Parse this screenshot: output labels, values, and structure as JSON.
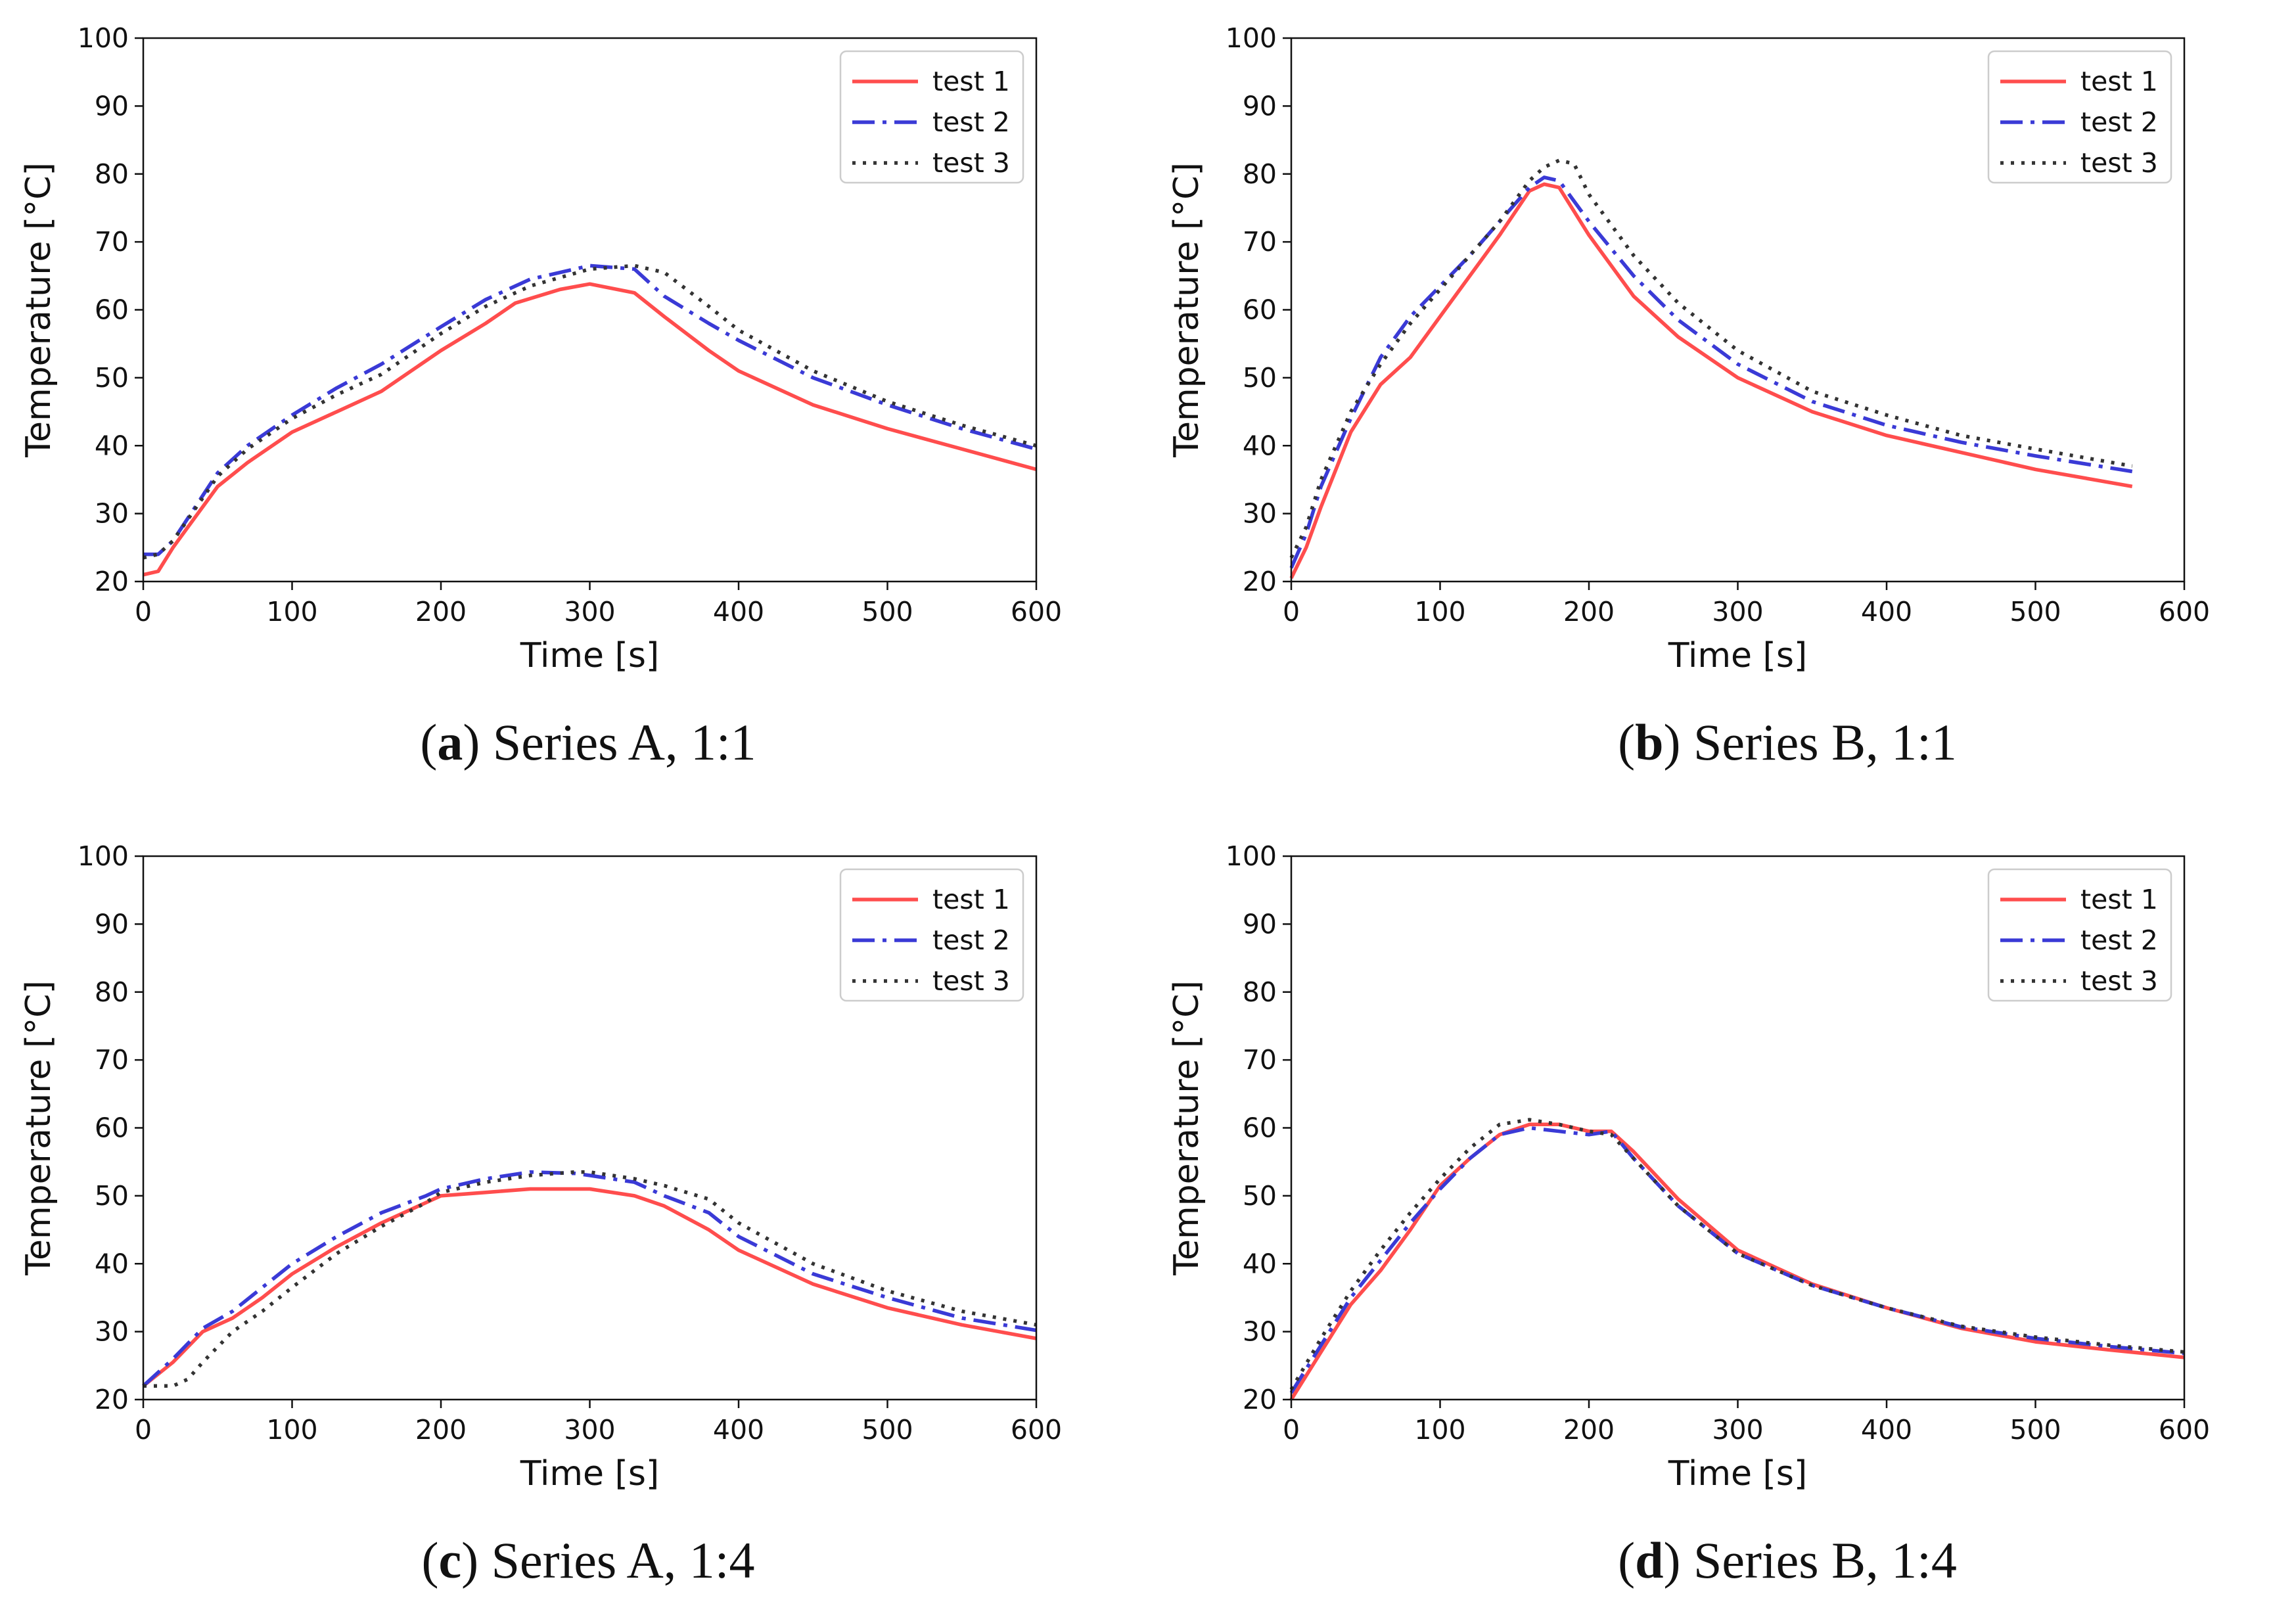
{
  "figure": {
    "panels": [
      {
        "id": "a",
        "letter": "a",
        "caption_text": "Series A, 1:1"
      },
      {
        "id": "b",
        "letter": "b",
        "caption_text": "Series B, 1:1"
      },
      {
        "id": "c",
        "letter": "c",
        "caption_text": "Series A, 1:4"
      },
      {
        "id": "d",
        "letter": "d",
        "caption_text": "Series B, 1:4"
      }
    ]
  },
  "chart_data": [
    {
      "type": "line",
      "title": "(a) Series A, 1:1",
      "xlabel": "Time [s]",
      "ylabel": "Temperature [°C]",
      "xlim": [
        0,
        600
      ],
      "ylim": [
        20,
        100
      ],
      "xticks": [
        0,
        100,
        200,
        300,
        400,
        500,
        600
      ],
      "yticks": [
        20,
        30,
        40,
        50,
        60,
        70,
        80,
        90,
        100
      ],
      "legend": "top-right",
      "grid": false,
      "series": [
        {
          "name": "test 1",
          "color": "#ff4d4d",
          "dash": "solid",
          "x": [
            0,
            10,
            20,
            30,
            50,
            70,
            100,
            130,
            160,
            200,
            230,
            250,
            280,
            300,
            330,
            350,
            380,
            400,
            450,
            500,
            550,
            600
          ],
          "y": [
            21,
            21.5,
            25,
            28,
            34,
            37.5,
            42,
            45,
            48,
            54,
            58,
            61,
            63,
            63.8,
            62.5,
            59,
            54,
            51,
            46,
            42.5,
            39.5,
            36.5
          ]
        },
        {
          "name": "test 2",
          "color": "#3a3ad6",
          "dash": "dashdot",
          "x": [
            0,
            10,
            20,
            50,
            70,
            100,
            130,
            160,
            200,
            230,
            260,
            290,
            300,
            330,
            350,
            380,
            400,
            450,
            500,
            550,
            600
          ],
          "y": [
            24,
            24,
            26,
            36,
            40,
            44.5,
            48.5,
            52,
            57.5,
            61.5,
            64.5,
            66,
            66.5,
            66,
            62,
            58,
            55.5,
            50,
            46,
            42.5,
            39.5
          ]
        },
        {
          "name": "test 3",
          "color": "#333333",
          "dash": "dotted",
          "x": [
            0,
            10,
            20,
            50,
            70,
            100,
            130,
            160,
            200,
            230,
            260,
            300,
            330,
            350,
            380,
            400,
            450,
            500,
            550,
            600
          ],
          "y": [
            23.5,
            24,
            26,
            35.5,
            39.5,
            44,
            47.5,
            50.5,
            56.5,
            60.5,
            63.5,
            66,
            66.5,
            65.5,
            60.5,
            57,
            51,
            46.5,
            43,
            40
          ]
        }
      ]
    },
    {
      "type": "line",
      "title": "(b) Series B, 1:1",
      "xlabel": "Time [s]",
      "ylabel": "Temperature [°C]",
      "xlim": [
        0,
        600
      ],
      "ylim": [
        20,
        100
      ],
      "xticks": [
        0,
        100,
        200,
        300,
        400,
        500,
        600
      ],
      "yticks": [
        20,
        30,
        40,
        50,
        60,
        70,
        80,
        90,
        100
      ],
      "legend": "top-right",
      "grid": false,
      "series": [
        {
          "name": "test 1",
          "color": "#ff4d4d",
          "dash": "solid",
          "x": [
            0,
            10,
            20,
            40,
            60,
            80,
            100,
            120,
            140,
            160,
            170,
            180,
            200,
            230,
            260,
            300,
            350,
            400,
            450,
            500,
            565
          ],
          "y": [
            20.5,
            25,
            31,
            42,
            49,
            53,
            59,
            65,
            71,
            77.5,
            78.5,
            78,
            71,
            62,
            56,
            50,
            45,
            41.5,
            39,
            36.5,
            34
          ]
        },
        {
          "name": "test 2",
          "color": "#3a3ad6",
          "dash": "dashdot",
          "x": [
            0,
            10,
            20,
            40,
            60,
            80,
            100,
            120,
            140,
            160,
            170,
            180,
            200,
            230,
            260,
            300,
            350,
            400,
            450,
            500,
            565
          ],
          "y": [
            22,
            27,
            34,
            44,
            53,
            59,
            63.5,
            68,
            73,
            78,
            79.5,
            79,
            73,
            65,
            58.5,
            52,
            46.5,
            43,
            40.5,
            38.5,
            36.2
          ]
        },
        {
          "name": "test 3",
          "color": "#333333",
          "dash": "dotted",
          "x": [
            0,
            10,
            20,
            40,
            60,
            80,
            100,
            120,
            140,
            160,
            170,
            180,
            190,
            200,
            230,
            260,
            300,
            350,
            400,
            450,
            500,
            565
          ],
          "y": [
            23.5,
            28,
            35,
            45,
            52,
            58,
            63,
            68,
            73,
            79,
            81,
            82,
            81.5,
            77,
            68,
            61,
            54,
            48,
            44.5,
            41.5,
            39.5,
            37
          ]
        }
      ]
    },
    {
      "type": "line",
      "title": "(c) Series A, 1:4",
      "xlabel": "Time [s]",
      "ylabel": "Temperature [°C]",
      "xlim": [
        0,
        600
      ],
      "ylim": [
        20,
        100
      ],
      "xticks": [
        0,
        100,
        200,
        300,
        400,
        500,
        600
      ],
      "yticks": [
        20,
        30,
        40,
        50,
        60,
        70,
        80,
        90,
        100
      ],
      "legend": "top-right",
      "grid": false,
      "series": [
        {
          "name": "test 1",
          "color": "#ff4d4d",
          "dash": "solid",
          "x": [
            0,
            20,
            40,
            60,
            80,
            100,
            130,
            160,
            190,
            200,
            230,
            260,
            290,
            300,
            330,
            350,
            380,
            400,
            450,
            500,
            550,
            600
          ],
          "y": [
            22,
            25.5,
            30,
            32,
            35,
            38.5,
            42.5,
            46,
            49,
            50,
            50.5,
            51,
            51,
            51,
            50,
            48.5,
            45,
            42,
            37,
            33.5,
            31,
            29
          ]
        },
        {
          "name": "test 2",
          "color": "#3a3ad6",
          "dash": "dashdot",
          "x": [
            0,
            20,
            40,
            60,
            80,
            100,
            130,
            160,
            190,
            200,
            230,
            260,
            290,
            300,
            330,
            350,
            380,
            400,
            450,
            500,
            550,
            600
          ],
          "y": [
            22,
            26,
            30.5,
            33,
            36.5,
            40,
            44,
            47.5,
            50,
            51,
            52.5,
            53.5,
            53.3,
            53,
            52,
            50,
            47.5,
            44,
            38.5,
            35,
            32,
            30.2
          ]
        },
        {
          "name": "test 3",
          "color": "#333333",
          "dash": "dotted",
          "x": [
            0,
            10,
            20,
            30,
            40,
            60,
            80,
            100,
            130,
            160,
            190,
            200,
            230,
            260,
            290,
            300,
            330,
            350,
            380,
            400,
            450,
            500,
            550,
            600
          ],
          "y": [
            22,
            22,
            22,
            23,
            25.5,
            30,
            33,
            36.5,
            41.5,
            45.5,
            49,
            50.5,
            52,
            53,
            53.5,
            53.5,
            52.5,
            51.5,
            49.5,
            46,
            40,
            36,
            33,
            31
          ]
        }
      ]
    },
    {
      "type": "line",
      "title": "(d) Series B, 1:4",
      "xlabel": "Time [s]",
      "ylabel": "Temperature [°C]",
      "xlim": [
        0,
        600
      ],
      "ylim": [
        20,
        100
      ],
      "xticks": [
        0,
        100,
        200,
        300,
        400,
        500,
        600
      ],
      "yticks": [
        20,
        30,
        40,
        50,
        60,
        70,
        80,
        90,
        100
      ],
      "legend": "top-right",
      "grid": false,
      "series": [
        {
          "name": "test 1",
          "color": "#ff4d4d",
          "dash": "solid",
          "x": [
            0,
            20,
            40,
            60,
            80,
            100,
            120,
            140,
            160,
            180,
            200,
            215,
            230,
            260,
            300,
            350,
            400,
            450,
            500,
            550,
            600
          ],
          "y": [
            20,
            27,
            34,
            39,
            45,
            51.5,
            55.5,
            59,
            60.5,
            60.5,
            59.5,
            59.5,
            56.5,
            49.5,
            42,
            37,
            33.5,
            30.5,
            28.5,
            27.3,
            26.2
          ]
        },
        {
          "name": "test 2",
          "color": "#3a3ad6",
          "dash": "dashdot",
          "x": [
            0,
            20,
            40,
            60,
            80,
            100,
            120,
            140,
            160,
            180,
            200,
            215,
            230,
            260,
            300,
            350,
            400,
            450,
            500,
            550,
            600
          ],
          "y": [
            21,
            28,
            35,
            40.5,
            46,
            51,
            55.5,
            59,
            60,
            59.5,
            59,
            59.5,
            55.5,
            48.5,
            41.5,
            36.8,
            33.5,
            30.7,
            29,
            27.8,
            26.8
          ]
        },
        {
          "name": "test 3",
          "color": "#333333",
          "dash": "dotted",
          "x": [
            0,
            20,
            40,
            60,
            80,
            100,
            120,
            140,
            160,
            180,
            200,
            215,
            230,
            260,
            300,
            350,
            400,
            450,
            500,
            550,
            600
          ],
          "y": [
            21.5,
            29,
            36,
            42,
            47.5,
            52.5,
            57,
            60.5,
            61.2,
            60.5,
            59.5,
            59,
            55.5,
            48.5,
            41.5,
            36.8,
            33.5,
            30.8,
            29.2,
            28,
            27
          ]
        }
      ]
    }
  ]
}
